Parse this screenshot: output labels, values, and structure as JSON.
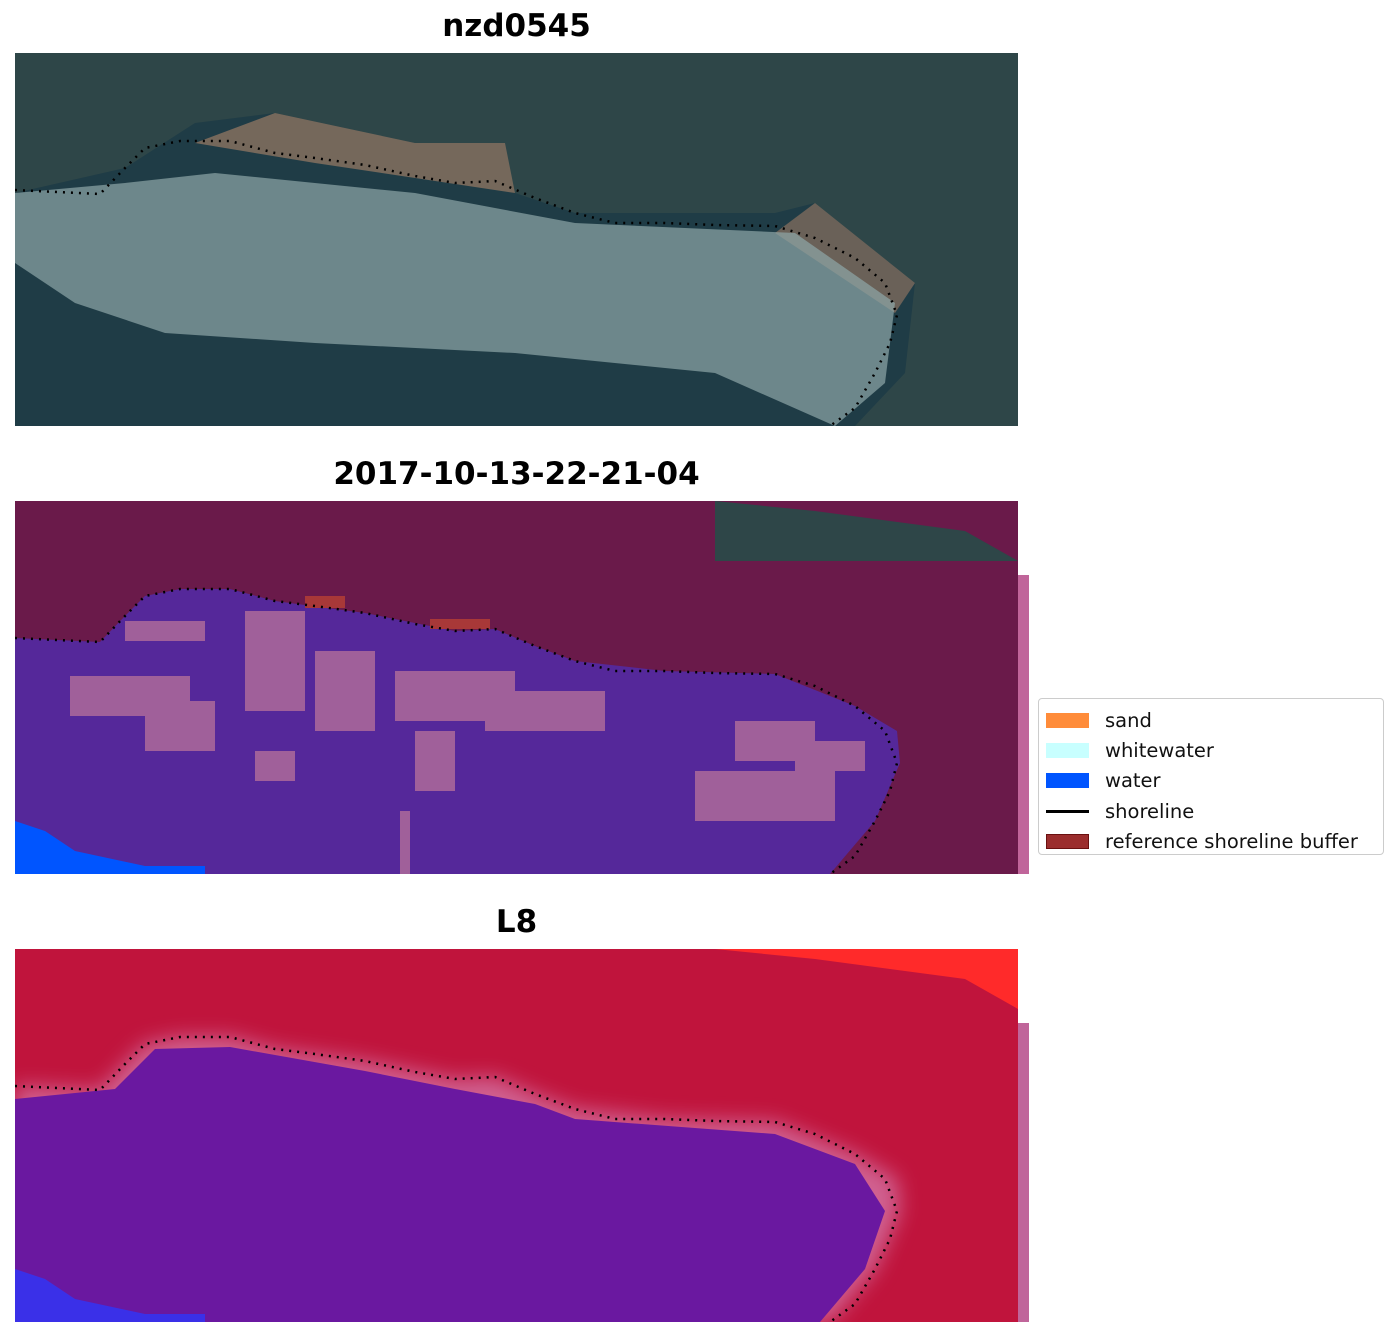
{
  "panels": [
    {
      "title": "nzd0545",
      "kind": "rgb-image"
    },
    {
      "title": "2017-10-13-22-21-04",
      "kind": "classified-image"
    },
    {
      "title": "L8",
      "kind": "mndwi-image"
    }
  ],
  "legend": {
    "placement": "right",
    "items": [
      {
        "label": "sand",
        "color": "#ff8c3a",
        "type": "patch"
      },
      {
        "label": "whitewater",
        "color": "#c8ffff",
        "type": "patch"
      },
      {
        "label": "water",
        "color": "#0055ff",
        "type": "patch"
      },
      {
        "label": "shoreline",
        "color": "#000000",
        "type": "line"
      },
      {
        "label": "reference shoreline buffer",
        "color": "#9b2d2d",
        "type": "patch"
      }
    ]
  }
}
